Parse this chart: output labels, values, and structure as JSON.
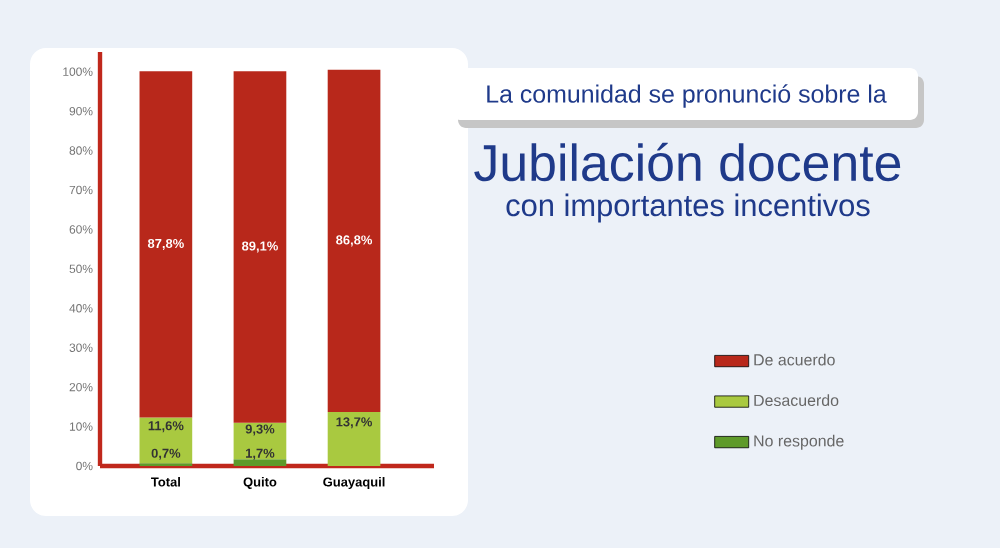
{
  "chart_data": {
    "type": "bar",
    "title": "Jubilación docente",
    "subtitle": "con importantes incentivos",
    "annotations": [
      "La comunidad se pronunció sobre la"
    ],
    "categories": [
      "Total",
      "Quito",
      "Guayaquil"
    ],
    "stacked": true,
    "series": [
      {
        "name": "No responde",
        "color": "#5e9a2a",
        "values": [
          0.7,
          1.7,
          null
        ],
        "value_labels": [
          "0,7%",
          "1,7%",
          null
        ]
      },
      {
        "name": "Desacuerdo",
        "color": "#a9c940",
        "values": [
          11.6,
          9.3,
          13.7
        ],
        "value_labels": [
          "11,6%",
          "9,3%",
          "13,7%"
        ]
      },
      {
        "name": "De acuerdo",
        "color": "#b8281b",
        "values": [
          87.8,
          89.1,
          86.8
        ],
        "value_labels": [
          "87,8%",
          "89,1%",
          "86,8%"
        ]
      }
    ],
    "ylim": [
      0,
      105
    ],
    "yticks": [
      {
        "value": 0,
        "label": "0%"
      },
      {
        "value": 10,
        "label": "10%"
      },
      {
        "value": 20,
        "label": "20%"
      },
      {
        "value": 30,
        "label": "30%"
      },
      {
        "value": 40,
        "label": "40%"
      },
      {
        "value": 50,
        "label": "50%"
      },
      {
        "value": 60,
        "label": "60%"
      },
      {
        "value": 70,
        "label": "70%"
      },
      {
        "value": 80,
        "label": "80%"
      },
      {
        "value": 90,
        "label": "90%"
      },
      {
        "value": 100,
        "label": "100%"
      }
    ],
    "legend": "right"
  }
}
